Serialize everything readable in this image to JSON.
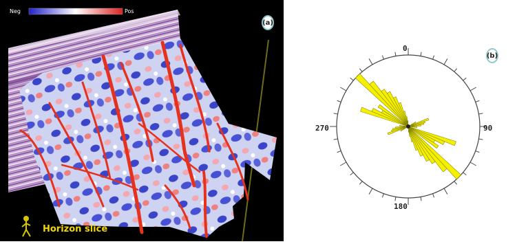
{
  "panel_a": {
    "badge": "(a)",
    "colorbar": {
      "neg_label": "Neg",
      "pos_label": "Pos",
      "colors": [
        "#2222cc",
        "#ffffff",
        "#dd2222"
      ]
    },
    "caption": "Horizon slice"
  },
  "panel_b": {
    "badge": "(b)",
    "rose": {
      "fill": "#f5f000",
      "stroke": "#8a8a00",
      "labels": {
        "north": "0",
        "east": "90",
        "south": "180",
        "west": "270"
      },
      "petals": [
        {
          "az": 315,
          "len": 1.0
        },
        {
          "az": 320,
          "len": 0.8
        },
        {
          "az": 325,
          "len": 0.62
        },
        {
          "az": 330,
          "len": 0.55
        },
        {
          "az": 335,
          "len": 0.45
        },
        {
          "az": 340,
          "len": 0.35
        },
        {
          "az": 345,
          "len": 0.22
        },
        {
          "az": 350,
          "len": 0.14
        },
        {
          "az": 355,
          "len": 0.08
        },
        {
          "az": 60,
          "len": 0.12
        },
        {
          "az": 70,
          "len": 0.3
        },
        {
          "az": 75,
          "len": 0.24
        },
        {
          "az": 80,
          "len": 0.22
        },
        {
          "az": 85,
          "len": 0.18
        },
        {
          "az": 95,
          "len": 0.12
        },
        {
          "az": 110,
          "len": 0.7
        },
        {
          "az": 115,
          "len": 0.55
        },
        {
          "az": 120,
          "len": 0.42
        },
        {
          "az": 125,
          "len": 0.5
        },
        {
          "az": 135,
          "len": 1.0
        },
        {
          "az": 140,
          "len": 0.8
        },
        {
          "az": 145,
          "len": 0.62
        },
        {
          "az": 150,
          "len": 0.55
        },
        {
          "az": 155,
          "len": 0.45
        },
        {
          "az": 160,
          "len": 0.35
        },
        {
          "az": 165,
          "len": 0.22
        },
        {
          "az": 170,
          "len": 0.14
        },
        {
          "az": 175,
          "len": 0.08
        },
        {
          "az": 240,
          "len": 0.12
        },
        {
          "az": 250,
          "len": 0.3
        },
        {
          "az": 255,
          "len": 0.24
        },
        {
          "az": 260,
          "len": 0.22
        },
        {
          "az": 265,
          "len": 0.18
        },
        {
          "az": 275,
          "len": 0.12
        },
        {
          "az": 290,
          "len": 0.7
        },
        {
          "az": 295,
          "len": 0.55
        },
        {
          "az": 300,
          "len": 0.42
        },
        {
          "az": 305,
          "len": 0.5
        }
      ]
    }
  }
}
